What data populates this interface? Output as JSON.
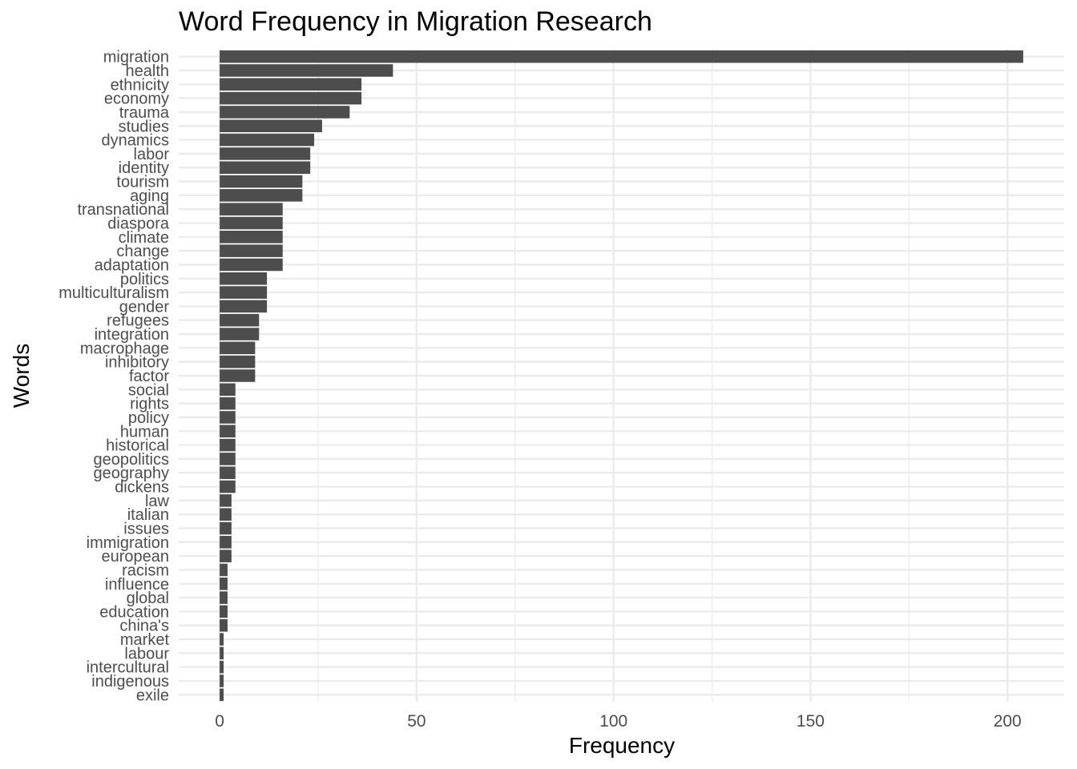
{
  "chart_data": {
    "type": "bar",
    "orientation": "horizontal",
    "title": "Word Frequency in Migration Research",
    "xlabel": "Frequency",
    "ylabel": "Words",
    "xlim": [
      -10.4,
      214.4
    ],
    "xticks": [
      0,
      50,
      100,
      150,
      200
    ],
    "grid": true,
    "legend": "none",
    "bar_color": "#4d4d4d",
    "grid_color": "#ebebeb",
    "categories": [
      "migration",
      "health",
      "ethnicity",
      "economy",
      "trauma",
      "studies",
      "dynamics",
      "labor",
      "identity",
      "tourism",
      "aging",
      "transnational",
      "diaspora",
      "climate",
      "change",
      "adaptation",
      "politics",
      "multiculturalism",
      "gender",
      "refugees",
      "integration",
      "macrophage",
      "inhibitory",
      "factor",
      "social",
      "rights",
      "policy",
      "human",
      "historical",
      "geopolitics",
      "geography",
      "dickens",
      "law",
      "italian",
      "issues",
      "immigration",
      "european",
      "racism",
      "influence",
      "global",
      "education",
      "china's",
      "market",
      "labour",
      "intercultural",
      "indigenous",
      "exile"
    ],
    "values": [
      204,
      44,
      36,
      36,
      33,
      26,
      24,
      23,
      23,
      21,
      21,
      16,
      16,
      16,
      16,
      16,
      12,
      12,
      12,
      10,
      10,
      9,
      9,
      9,
      4,
      4,
      4,
      4,
      4,
      4,
      4,
      4,
      3,
      3,
      3,
      3,
      3,
      2,
      2,
      2,
      2,
      2,
      1,
      1,
      1,
      1,
      1
    ]
  }
}
